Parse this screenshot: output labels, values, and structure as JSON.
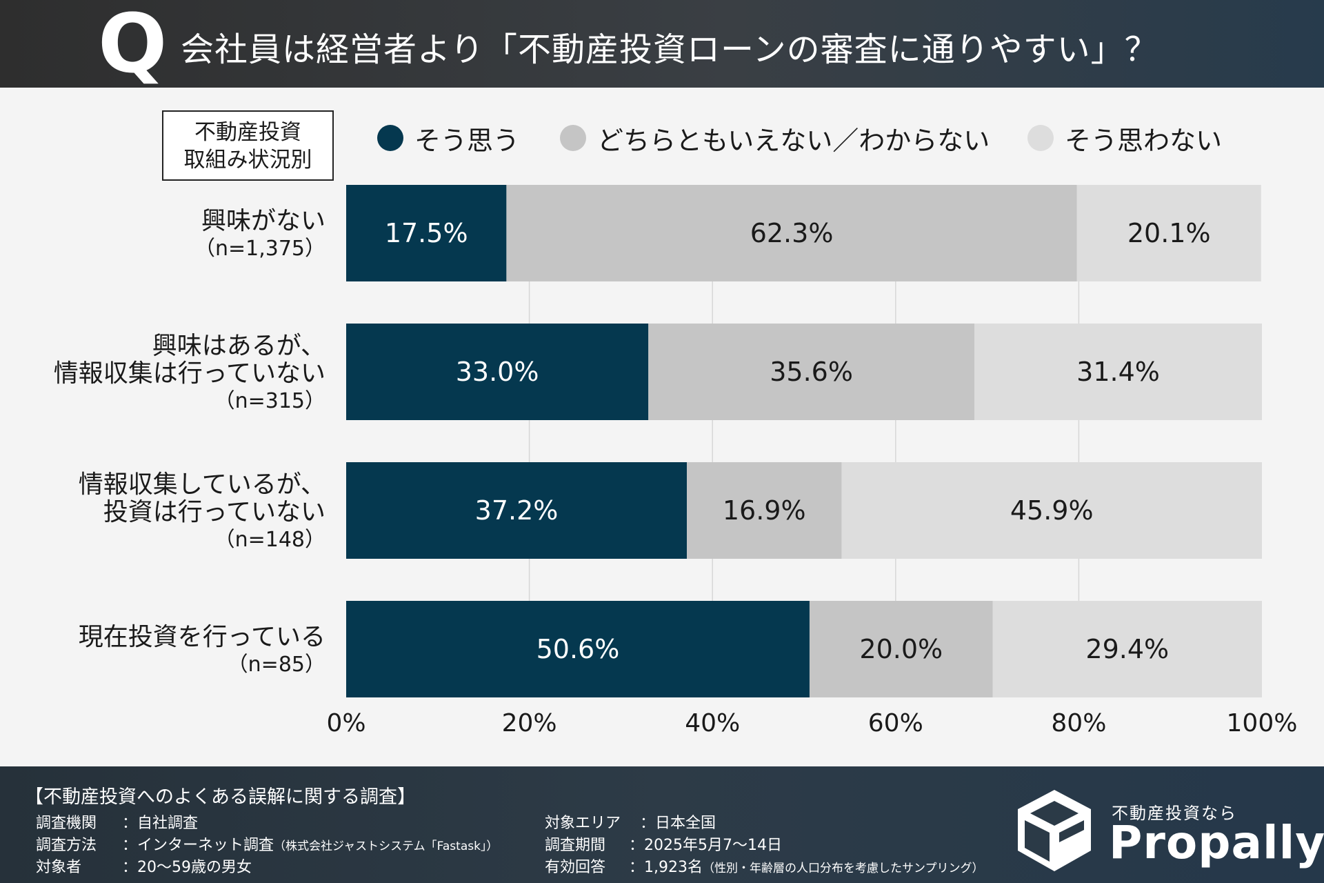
{
  "header": {
    "q_mark": "Q",
    "question": "会社員は経営者より「不動産投資ローンの審査に通りやすい」？"
  },
  "group_box": {
    "line1": "不動産投資",
    "line2": "取組み状況別"
  },
  "colors": {
    "agree": "#05384f",
    "neutral": "#c5c5c5",
    "disagree": "#dddddd",
    "grid": "#d6d6d6"
  },
  "chart_data": {
    "type": "bar",
    "orientation": "horizontal-stacked-100",
    "legend_position": "top",
    "categories": [
      {
        "label_lines": [
          "興味がない"
        ],
        "n": "（n=1,375）"
      },
      {
        "label_lines": [
          "興味はあるが、",
          "情報収集は行っていない"
        ],
        "n": "（n=315）"
      },
      {
        "label_lines": [
          "情報収集しているが、",
          "投資は行っていない"
        ],
        "n": "（n=148）"
      },
      {
        "label_lines": [
          "現在投資を行っている"
        ],
        "n": "（n=85）"
      }
    ],
    "series": [
      {
        "name": "そう思う",
        "color_key": "agree",
        "values": [
          17.5,
          33.0,
          37.2,
          50.6
        ],
        "labels": [
          "17.5%",
          "33.0%",
          "37.2%",
          "50.6%"
        ]
      },
      {
        "name": "どちらともいえない／わからない",
        "color_key": "neutral",
        "values": [
          62.3,
          35.6,
          16.9,
          20.0
        ],
        "labels": [
          "62.3%",
          "35.6%",
          "16.9%",
          "20.0%"
        ]
      },
      {
        "name": "そう思わない",
        "color_key": "disagree",
        "values": [
          20.1,
          31.4,
          45.9,
          29.4
        ],
        "labels": [
          "20.1%",
          "31.4%",
          "45.9%",
          "29.4%"
        ]
      }
    ],
    "xlim": [
      0,
      100
    ],
    "xticks": [
      0,
      20,
      40,
      60,
      80,
      100
    ],
    "xtick_labels": [
      "0%",
      "20%",
      "40%",
      "60%",
      "80%",
      "100%"
    ],
    "grid": true
  },
  "footer": {
    "title": "【不動産投資へのよくある誤解に関する調査】",
    "left": [
      {
        "key": "調査機関",
        "value": "：自社調査",
        "note": ""
      },
      {
        "key": "調査方法",
        "value": "：インターネット調査",
        "note": "（株式会社ジャストシステム「Fastask」）"
      },
      {
        "key": "対象者",
        "value": "：20～59歳の男女",
        "note": ""
      }
    ],
    "right": [
      {
        "key": "対象エリア",
        "value": "：日本全国",
        "note": ""
      },
      {
        "key": "調査期間",
        "value": "：2025年5月7～14日",
        "note": ""
      },
      {
        "key": "有効回答",
        "value": "：1,923名",
        "note": "（性別・年齢層の人口分布を考慮したサンプリング）"
      }
    ]
  },
  "brand": {
    "tagline": "不動産投資なら",
    "name": "Propally"
  }
}
